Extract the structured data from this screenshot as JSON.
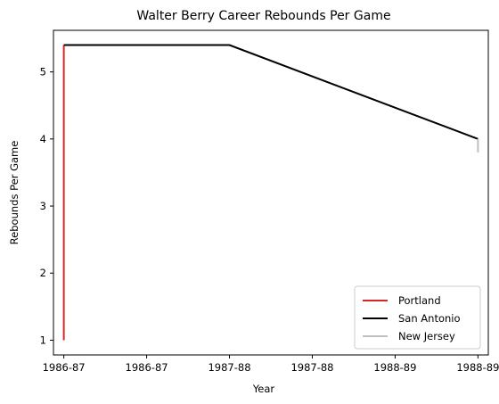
{
  "chart_data": {
    "type": "line",
    "title": "Walter Berry  Career Rebounds Per Game",
    "xlabel": "Year",
    "ylabel": "Rebounds Per Game",
    "x_tick_labels": [
      "1986-87",
      "1986-87",
      "1987-88",
      "1987-88",
      "1988-89",
      "1988-89"
    ],
    "x_tick_values": [
      0,
      0.5,
      1,
      1.5,
      2,
      2.5
    ],
    "xlim": [
      -0.0625,
      2.5625
    ],
    "y_ticks": [
      1,
      2,
      3,
      4,
      5
    ],
    "ylim": [
      0.78,
      5.62
    ],
    "grid": false,
    "legend_position": "lower-right",
    "series": [
      {
        "name": "Portland",
        "color": "#d62728",
        "x": [
          0,
          0
        ],
        "y": [
          1.0,
          5.4
        ]
      },
      {
        "name": "San Antonio",
        "color": "#000000",
        "x": [
          0,
          1,
          2.5
        ],
        "y": [
          5.4,
          5.4,
          4.0
        ]
      },
      {
        "name": "New Jersey",
        "color": "#bfbfbf",
        "x": [
          2.5,
          2.5
        ],
        "y": [
          4.0,
          3.8
        ]
      }
    ]
  }
}
